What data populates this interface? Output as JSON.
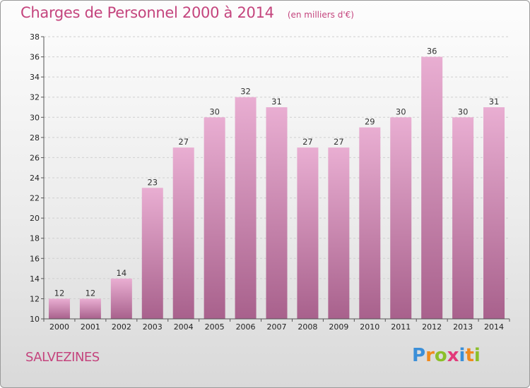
{
  "header": {
    "title": "Charges de Personnel 2000 à 2014",
    "subtitle": "(en milliers d'€)"
  },
  "commune": "SALVEZINES",
  "logo": {
    "text": "Proxiti",
    "letters": [
      {
        "char": "P",
        "color": "#3b8fd8"
      },
      {
        "char": "r",
        "color": "#f08a1c"
      },
      {
        "char": "o",
        "color": "#8bbf2a"
      },
      {
        "char": "x",
        "color": "#e23a7a"
      },
      {
        "char": "i",
        "color": "#3b8fd8"
      },
      {
        "char": "t",
        "color": "#f08a1c"
      },
      {
        "char": "i",
        "color": "#8bbf2a"
      }
    ]
  },
  "colors": {
    "accent": "#c4447d",
    "bar_top": "#e9aed2",
    "bar_bottom": "#a8618c"
  },
  "chart_data": {
    "type": "bar",
    "title": "Charges de Personnel 2000 à 2014",
    "subtitle": "(en milliers d'€)",
    "categories": [
      "2000",
      "2001",
      "2002",
      "2003",
      "2004",
      "2005",
      "2006",
      "2007",
      "2008",
      "2009",
      "2010",
      "2011",
      "2012",
      "2013",
      "2014"
    ],
    "values": [
      12,
      12,
      14,
      23,
      27,
      30,
      32,
      31,
      27,
      27,
      29,
      30,
      36,
      30,
      31
    ],
    "xlabel": "",
    "ylabel": "",
    "ylim": [
      10,
      38
    ],
    "yticks": [
      10,
      12,
      14,
      16,
      18,
      20,
      22,
      24,
      26,
      28,
      30,
      32,
      34,
      36,
      38
    ],
    "grid": true,
    "legend": "none"
  }
}
